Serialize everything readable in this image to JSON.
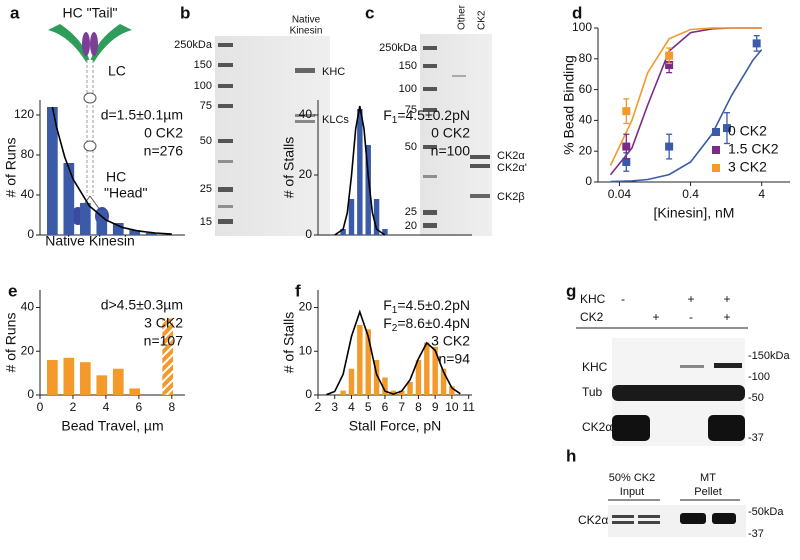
{
  "panel_letters": [
    "a",
    "b",
    "c",
    "d",
    "e",
    "f",
    "g",
    "h"
  ],
  "diagram_a": {
    "tail": "HC \"Tail\"",
    "lc": "LC",
    "hc": "HC",
    "head": "\"Head\"",
    "caption": "Native Kinesin"
  },
  "gel_b": {
    "markers": [
      "250kDa",
      "150",
      "100",
      "75",
      "50",
      "25",
      "15"
    ],
    "lane_label": [
      "Native",
      "Kinesin"
    ],
    "bands": [
      "KHC",
      "KLCs"
    ]
  },
  "gel_c": {
    "markers": [
      "250kDa",
      "150",
      "100",
      "75",
      "50",
      "25",
      "20"
    ],
    "lanes": [
      "Other",
      "CK2"
    ],
    "bands": [
      "CK2α",
      "CK2α'",
      "CK2β"
    ]
  },
  "blot_g": {
    "rows": [
      {
        "label": "KHC",
        "signs": [
          "-",
          null,
          "+",
          "+"
        ]
      },
      {
        "label": "CK2",
        "signs": [
          null,
          "+",
          "-",
          "+"
        ]
      }
    ],
    "bands": [
      "KHC",
      "Tub",
      "CK2α"
    ],
    "markers": [
      "-150kDa",
      "-100",
      "-50",
      "-37"
    ]
  },
  "blot_h": {
    "header": [
      "50% CK2",
      "Input",
      "MT",
      "Pellet"
    ],
    "band": "CK2α",
    "markers": [
      "-50kDa",
      "-37"
    ]
  },
  "chart_data": [
    {
      "type": "scatter",
      "ylabel": "% Bead Binding",
      "xlabel": "[Kinesin], nM",
      "xscale": "log",
      "xlim": [
        0.02,
        10
      ],
      "xticks": [
        0.04,
        0.4,
        4
      ],
      "ylim": [
        0,
        100
      ],
      "yticks": [
        0,
        20,
        40,
        60,
        80,
        100
      ],
      "legend": "lower right",
      "series": [
        {
          "name": "0 CK2",
          "color": "#3b5ba9",
          "x": [
            0.05,
            0.2,
            1.3,
            3.4
          ],
          "values": [
            13,
            23,
            35,
            90
          ],
          "errors": [
            6,
            8,
            10,
            5
          ]
        },
        {
          "name": "1.5 CK2",
          "color": "#7b2a8a",
          "x": [
            0.05,
            0.2
          ],
          "values": [
            23,
            76
          ],
          "errors": [
            8,
            5
          ]
        },
        {
          "name": "3 CK2",
          "color": "#f39a2b",
          "x": [
            0.05,
            0.2
          ],
          "values": [
            46,
            82
          ],
          "errors": [
            8,
            5
          ]
        }
      ],
      "fits": [
        {
          "color": "#3b5ba9",
          "x": [
            0.03,
            0.06,
            0.1,
            0.2,
            0.4,
            0.8,
            1.5,
            3,
            4
          ],
          "values": [
            0.24,
            0.7,
            1.6,
            4.8,
            13,
            31,
            56,
            79,
            86
          ]
        },
        {
          "color": "#7b2a8a",
          "x": [
            0.03,
            0.06,
            0.1,
            0.2,
            0.4,
            0.8,
            1.5,
            3,
            4
          ],
          "values": [
            4.7,
            22,
            50,
            85,
            97,
            99.5,
            100,
            100,
            100
          ]
        },
        {
          "color": "#f39a2b",
          "x": [
            0.03,
            0.06,
            0.1,
            0.2,
            0.4,
            0.8,
            1.5,
            3,
            4
          ],
          "values": [
            10.7,
            40,
            71,
            93,
            99,
            100,
            100,
            100,
            100
          ]
        }
      ]
    },
    {
      "type": "bar",
      "ylabel": "# of Runs",
      "color": "#3b5ba9",
      "xlim": [
        0,
        8.8
      ],
      "ylim": [
        0,
        135
      ],
      "yticks": [
        0,
        40,
        80,
        120
      ],
      "x": [
        0.75,
        1.75,
        2.75,
        3.75,
        4.75,
        5.75,
        6.75
      ],
      "values": [
        128,
        72,
        32,
        25,
        12,
        5,
        2
      ],
      "fit": {
        "color": "#000000",
        "x": [
          0.75,
          1,
          1.5,
          2,
          3,
          4,
          5,
          6,
          7,
          8
        ],
        "values": [
          128,
          108,
          78,
          56,
          29,
          15,
          7.5,
          3.9,
          2,
          1
        ]
      },
      "annotations": [
        "d=1.5±0.1µm",
        "0 CK2",
        "n=276"
      ]
    },
    {
      "type": "bar",
      "ylabel": "# of Runs",
      "xlabel": "Bead Travel, µm",
      "color": "#f39a2b",
      "xlim": [
        0,
        8.8
      ],
      "ylim": [
        0,
        48
      ],
      "xticks": [
        0,
        2,
        4,
        6,
        8
      ],
      "yticks": [
        0,
        20,
        40
      ],
      "x": [
        0.75,
        1.75,
        2.75,
        3.75,
        4.75,
        5.75,
        7.75
      ],
      "values": [
        16,
        17,
        15,
        9,
        12,
        3,
        35
      ],
      "hatch": [
        false,
        false,
        false,
        false,
        false,
        false,
        true
      ],
      "annotations": [
        "d>4.5±0.3µm",
        "3 CK2",
        "n=107"
      ]
    },
    {
      "type": "bar",
      "ylabel": "# of Stalls",
      "color": "#3b5ba9",
      "xlim": [
        2,
        11.2
      ],
      "ylim": [
        0,
        45
      ],
      "yticks": [
        0,
        20,
        40
      ],
      "x": [
        3.5,
        4,
        4.5,
        5,
        5.5,
        6
      ],
      "values": [
        2,
        12,
        42,
        30,
        12,
        2
      ],
      "fit": {
        "color": "#000000",
        "x": [
          3,
          3.5,
          3.75,
          4,
          4.25,
          4.5,
          4.75,
          5,
          5.25,
          5.5,
          6
        ],
        "values": [
          0,
          1.9,
          7.4,
          19.8,
          35.4,
          43,
          35.4,
          19.8,
          7.4,
          1.9,
          0
        ]
      },
      "annotations": [
        {
          "text": "F",
          "sub": "1",
          "rest": "=4.5±0.2pN"
        },
        "0 CK2",
        "n=100"
      ]
    },
    {
      "type": "bar",
      "ylabel": "# of Stalls",
      "xlabel": "Stall Force, pN",
      "color": "#f39a2b",
      "xlim": [
        2,
        11.2
      ],
      "ylim": [
        0,
        24
      ],
      "xticks": [
        2,
        3,
        4,
        5,
        6,
        7,
        8,
        9,
        10,
        11
      ],
      "yticks": [
        0,
        10,
        20
      ],
      "x": [
        3.5,
        4,
        4.5,
        5,
        5.5,
        6,
        6.5,
        7,
        7.5,
        8,
        8.5,
        9,
        9.5,
        10
      ],
      "values": [
        1,
        6,
        16,
        15,
        8,
        4,
        1,
        1,
        3,
        8,
        12,
        11,
        6,
        2
      ],
      "fit": {
        "color": "#000000",
        "x": [
          2.5,
          3,
          3.5,
          4,
          4.5,
          5,
          5.5,
          6,
          6.5,
          7,
          7.5,
          8,
          8.5,
          9,
          9.5,
          10,
          10.5
        ],
        "values": [
          0.1,
          0.8,
          4.7,
          13.4,
          19,
          13.4,
          4.7,
          0.9,
          0.2,
          0.9,
          3.5,
          8.3,
          11.9,
          10.2,
          5.3,
          1.6,
          0.3
        ]
      },
      "annotations": [
        {
          "text": "F",
          "sub": "1",
          "rest": "=4.5±0.2pN"
        },
        {
          "text": "F",
          "sub": "2",
          "rest": "=8.6±0.4pN"
        },
        "3 CK2",
        "n=94"
      ]
    }
  ]
}
